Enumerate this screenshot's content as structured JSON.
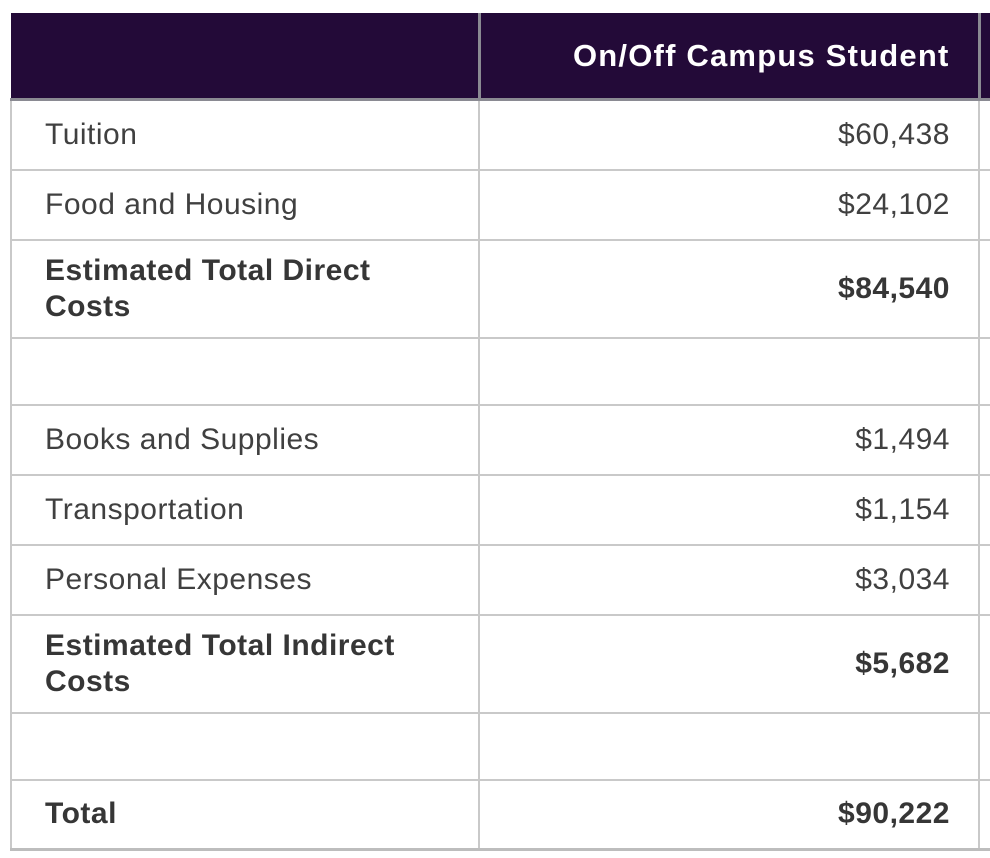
{
  "table": {
    "header": {
      "label_column": "",
      "value_column": "On/Off Campus Student"
    },
    "rows": [
      {
        "label": "Tuition",
        "value": "$60,438"
      },
      {
        "label": "Food and Housing",
        "value": "$24,102"
      },
      {
        "label": "Estimated Total Direct Costs",
        "value": "$84,540"
      },
      {
        "label": "",
        "value": ""
      },
      {
        "label": "Books and Supplies",
        "value": "$1,494"
      },
      {
        "label": "Transportation",
        "value": "$1,154"
      },
      {
        "label": "Personal Expenses",
        "value": "$3,034"
      },
      {
        "label": "Estimated Total Indirect Costs",
        "value": "$5,682"
      },
      {
        "label": "",
        "value": ""
      },
      {
        "label": "Total",
        "value": "$90,222"
      }
    ]
  },
  "chart_data": {
    "type": "table",
    "columns": [
      "",
      "On/Off Campus Student"
    ],
    "rows": [
      [
        "Tuition",
        60438
      ],
      [
        "Food and Housing",
        24102
      ],
      [
        "Estimated Total Direct Costs",
        84540
      ],
      [
        "",
        null
      ],
      [
        "Books and Supplies",
        1494
      ],
      [
        "Transportation",
        1154
      ],
      [
        "Personal Expenses",
        3034
      ],
      [
        "Estimated Total Indirect Costs",
        5682
      ],
      [
        "",
        null
      ],
      [
        "Total",
        90222
      ]
    ]
  },
  "colors": {
    "header_bg": "#230a38",
    "header_text": "#ffffff",
    "header_border": "#8a8a92",
    "body_text": "#404040",
    "bold_text": "#363636",
    "row_border": "#c9c9c9",
    "bottom_border": "#bdbdbd"
  }
}
